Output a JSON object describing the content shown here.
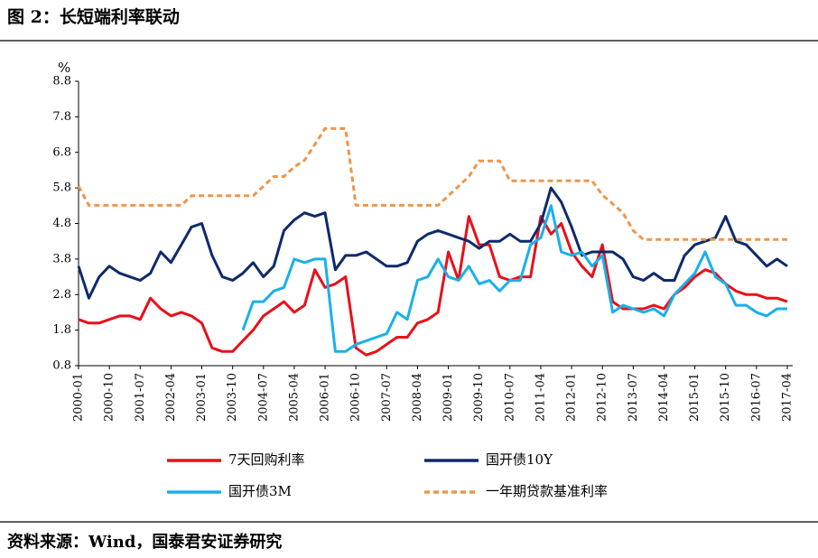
{
  "chart_data": {
    "type": "line",
    "title": "图 2：长短端利率联动",
    "y_unit": "%",
    "source": "资料来源：Wind，国泰君安证券研究",
    "categories": [
      "2000-01",
      null,
      null,
      "2000-10",
      null,
      null,
      "2001-07",
      null,
      null,
      "2002-04",
      null,
      null,
      "2003-01",
      null,
      null,
      "2003-10",
      null,
      null,
      "2004-07",
      null,
      null,
      "2005-04",
      null,
      null,
      "2006-01",
      null,
      null,
      "2006-10",
      null,
      null,
      "2007-07",
      null,
      null,
      "2008-04",
      null,
      null,
      "2009-01",
      null,
      null,
      "2009-10",
      null,
      null,
      "2010-07",
      null,
      null,
      "2011-04",
      null,
      null,
      "2012-01",
      null,
      null,
      "2012-10",
      null,
      null,
      "2013-07",
      null,
      null,
      "2014-04",
      null,
      null,
      "2015-01",
      null,
      null,
      "2015-10",
      null,
      null,
      "2016-07",
      null,
      null,
      "2017-04"
    ],
    "ylim": [
      0.8,
      8.8
    ],
    "yticks": [
      0.8,
      1.8,
      2.8,
      3.8,
      4.8,
      5.8,
      6.8,
      7.8,
      8.8
    ],
    "series": [
      {
        "name": "7天回购利率",
        "color": "#e8101a",
        "style": "solid",
        "values": [
          2.1,
          2.0,
          2.0,
          2.1,
          2.2,
          2.2,
          2.1,
          2.7,
          2.4,
          2.2,
          2.3,
          2.2,
          2.0,
          1.3,
          1.2,
          1.2,
          1.5,
          1.8,
          2.2,
          2.4,
          2.6,
          2.3,
          2.5,
          3.5,
          3.0,
          3.1,
          3.3,
          1.3,
          1.1,
          1.2,
          1.4,
          1.6,
          1.6,
          2.0,
          2.1,
          2.3,
          4.0,
          3.2,
          5.0,
          4.2,
          4.2,
          3.3,
          3.2,
          3.3,
          3.3,
          5.0,
          4.5,
          4.8,
          4.0,
          3.6,
          3.3,
          4.2,
          2.6,
          2.4,
          2.4,
          2.4,
          2.5,
          2.4,
          2.8,
          3.0,
          3.3,
          3.5,
          3.4,
          3.1,
          2.9,
          2.8,
          2.8,
          2.7,
          2.7,
          2.6
        ]
      },
      {
        "name": "国开债10Y",
        "color": "#0d2a6b",
        "style": "solid",
        "values": [
          3.6,
          2.7,
          3.3,
          3.6,
          3.4,
          3.3,
          3.2,
          3.4,
          4.0,
          3.7,
          4.2,
          4.7,
          4.8,
          3.9,
          3.3,
          3.2,
          3.4,
          3.7,
          3.3,
          3.6,
          4.6,
          4.9,
          5.1,
          5.0,
          5.1,
          3.5,
          3.9,
          3.9,
          4.0,
          3.8,
          3.6,
          3.6,
          3.7,
          4.3,
          4.5,
          4.6,
          4.5,
          4.4,
          4.3,
          4.1,
          4.3,
          4.3,
          4.5,
          4.3,
          4.3,
          4.8,
          5.8,
          5.4,
          4.7,
          3.9,
          4.0,
          4.0,
          4.0,
          3.8,
          3.3,
          3.2,
          3.4,
          3.2,
          3.2,
          3.9,
          4.2,
          4.3,
          4.4,
          5.0,
          4.3,
          4.2,
          3.9,
          3.6,
          3.8,
          3.6
        ]
      },
      {
        "name": "国开债3M",
        "color": "#1ab0e8",
        "style": "solid",
        "values": [
          null,
          null,
          null,
          null,
          null,
          null,
          null,
          null,
          null,
          null,
          null,
          null,
          null,
          null,
          null,
          null,
          1.8,
          2.6,
          2.6,
          2.9,
          3.0,
          3.8,
          3.7,
          3.8,
          3.8,
          1.2,
          1.2,
          1.4,
          1.5,
          1.6,
          1.7,
          2.3,
          2.1,
          3.2,
          3.3,
          3.8,
          3.3,
          3.2,
          3.6,
          3.1,
          3.2,
          2.9,
          3.2,
          3.2,
          4.2,
          4.4,
          5.3,
          4.0,
          3.9,
          4.0,
          3.6,
          3.9,
          2.3,
          2.5,
          2.4,
          2.3,
          2.4,
          2.2,
          2.8,
          3.1,
          3.4,
          4.0,
          3.3,
          3.1,
          2.5,
          2.5,
          2.3,
          2.2,
          2.4,
          2.4
        ]
      },
      {
        "name": "一年期贷款基准利率",
        "color": "#f0954a",
        "style": "dashed",
        "values": [
          5.85,
          5.31,
          5.31,
          5.31,
          5.31,
          5.31,
          5.31,
          5.31,
          5.31,
          5.31,
          5.31,
          5.58,
          5.58,
          5.58,
          5.58,
          5.58,
          5.58,
          5.58,
          5.85,
          6.12,
          6.12,
          6.39,
          6.58,
          7.02,
          7.47,
          7.47,
          7.47,
          5.31,
          5.31,
          5.31,
          5.31,
          5.31,
          5.31,
          5.31,
          5.31,
          5.31,
          5.58,
          5.85,
          6.12,
          6.56,
          6.56,
          6.56,
          6.0,
          6.0,
          6.0,
          6.0,
          6.0,
          6.0,
          6.0,
          6.0,
          6.0,
          5.6,
          5.35,
          5.1,
          4.6,
          4.35,
          4.35,
          4.35,
          4.35,
          4.35,
          4.35,
          4.35,
          4.35,
          4.35,
          4.35,
          4.35,
          4.35,
          4.35,
          4.35,
          4.35
        ]
      }
    ]
  }
}
